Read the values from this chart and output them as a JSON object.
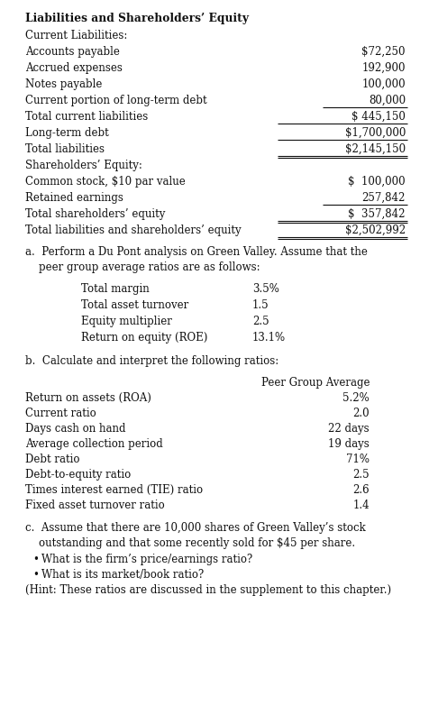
{
  "bg_color": "#ffffff",
  "fs": 8.5,
  "fs_bold": 8.8,
  "lh": 18,
  "section1": {
    "title": "Liabilities and Shareholders’ Equity",
    "rows": [
      {
        "label": "Current Liabilities:",
        "value": "",
        "indent": false,
        "underline_val": false,
        "underline_num": false
      },
      {
        "label": "Accounts payable",
        "value": "$72,250",
        "indent": true,
        "underline_val": false,
        "underline_num": false
      },
      {
        "label": "Accrued expenses",
        "value": "192,900",
        "indent": true,
        "underline_val": false,
        "underline_num": false
      },
      {
        "label": "Notes payable",
        "value": "100,000",
        "indent": true,
        "underline_val": false,
        "underline_num": false
      },
      {
        "label": "Current portion of long-term debt",
        "value": "80,000",
        "indent": true,
        "underline_val": false,
        "underline_num": true
      },
      {
        "label": "Total current liabilities",
        "value": "$ 445,150",
        "indent": true,
        "underline_val": true,
        "underline_num": false
      },
      {
        "label": "Long-term debt",
        "value": "$1,700,000",
        "indent": true,
        "underline_val": true,
        "underline_num": false
      },
      {
        "label": "Total liabilities",
        "value": "$2,145,150",
        "indent": true,
        "underline_val": true,
        "underline_num": false
      },
      {
        "label": "Shareholders’ Equity:",
        "value": "",
        "indent": false,
        "underline_val": false,
        "underline_num": false
      },
      {
        "label": "Common stock, $10 par value",
        "value": "$  100,000",
        "indent": true,
        "underline_val": false,
        "underline_num": false
      },
      {
        "label": "Retained earnings",
        "value": "257,842",
        "indent": true,
        "underline_val": false,
        "underline_num": true
      },
      {
        "label": "Total shareholders’ equity",
        "value": "$  357,842",
        "indent": true,
        "underline_val": true,
        "underline_num": false
      },
      {
        "label": "Total liabilities and shareholders’ equity",
        "value": "$2,502,992",
        "indent": true,
        "underline_val": true,
        "underline_num": false
      }
    ]
  },
  "section_a_intro1": "a.  Perform a Du Pont analysis on Green Valley. Assume that the",
  "section_a_intro2": "    peer group average ratios are as follows:",
  "dupont": [
    {
      "label": "Total margin",
      "value": "3.5%"
    },
    {
      "label": "Total asset turnover",
      "value": "1.5"
    },
    {
      "label": "Equity multiplier",
      "value": "2.5"
    },
    {
      "label": "Return on equity (ROE)",
      "value": "13.1%"
    }
  ],
  "section_b_intro": "b.  Calculate and interpret the following ratios:",
  "peer_header": "Peer Group Average",
  "peer_rows": [
    {
      "label": "Return on assets (ROA)",
      "value": "5.2%"
    },
    {
      "label": "Current ratio",
      "value": "2.0"
    },
    {
      "label": "Days cash on hand",
      "value": "22 days"
    },
    {
      "label": "Average collection period",
      "value": "19 days"
    },
    {
      "label": "Debt ratio",
      "value": "71%"
    },
    {
      "label": "Debt-to-equity ratio",
      "value": "2.5"
    },
    {
      "label": "Times interest earned (TIE) ratio",
      "value": "2.6"
    },
    {
      "label": "Fixed asset turnover ratio",
      "value": "1.4"
    }
  ],
  "section_c_intro1": "c.  Assume that there are 10,000 shares of Green Valley’s stock",
  "section_c_intro2": "    outstanding and that some recently sold for $45 per share.",
  "bullets": [
    "What is the firm’s price/earnings ratio?",
    "What is its market/book ratio?"
  ],
  "hint": "(Hint: These ratios are discussed in the supplement to this chapter.)"
}
